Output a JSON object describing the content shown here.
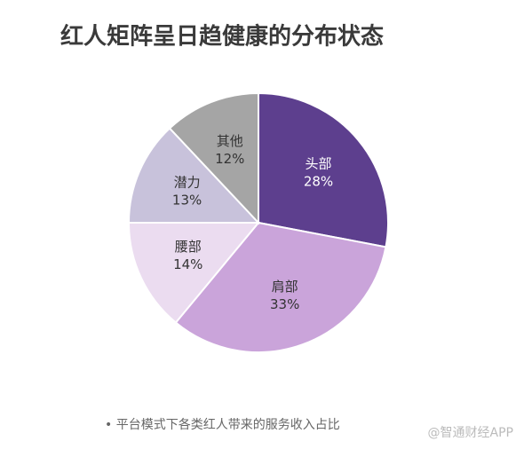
{
  "chart_data": {
    "type": "pie",
    "title": "红人矩阵呈日趋健康的分布状态",
    "categories": [
      "头部",
      "肩部",
      "腰部",
      "潜力",
      "其他"
    ],
    "values": [
      28,
      33,
      14,
      13,
      12
    ],
    "value_labels": [
      "28%",
      "33%",
      "14%",
      "13%",
      "12%"
    ],
    "colors": [
      "#5d3f8e",
      "#caa4da",
      "#ebdcf0",
      "#c8c2db",
      "#a5a5a5"
    ],
    "note": "• 平台模式下各类红人带来的服务收入占比",
    "watermark": "@智通财经APP"
  }
}
